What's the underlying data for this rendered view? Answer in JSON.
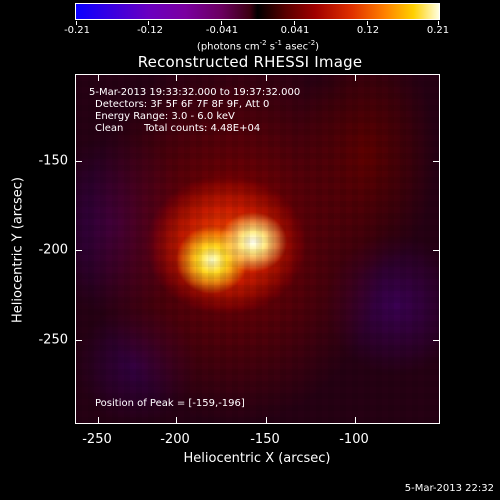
{
  "colorbar": {
    "tick_labels": [
      "-0.21",
      "-0.12",
      "-0.041",
      "0.041",
      "0.12",
      "0.21"
    ],
    "units_base": "(photons cm",
    "units_exp1": "-2",
    "units_mid1": " s",
    "units_exp2": "-1",
    "units_mid2": " asec",
    "units_exp3": "-2",
    "units_end": ")",
    "min_color": "#0a00ff",
    "max_color": "#ffffe0"
  },
  "title": "Reconstructed RHESSI Image",
  "info": {
    "time_range": "5-Mar-2013 19:33:32.000 to 19:37:32.000",
    "detectors": "Detectors: 3F 5F 6F 7F 8F 9F, Att 0",
    "energy": "Energy Range: 3.0 - 6.0 keV",
    "algorithm": "Clean",
    "counts": "Total counts: 4.48E+04",
    "peak": "Position of Peak = [-159,-196]"
  },
  "axes": {
    "xlabel": "Heliocentric X (arcsec)",
    "ylabel": "Heliocentric Y (arcsec)",
    "xticks": [
      "-250",
      "-200",
      "-150",
      "-100"
    ],
    "yticks": [
      "-150",
      "-200",
      "-250"
    ]
  },
  "footer": {
    "date": "5-Mar-2013 22:32"
  }
}
